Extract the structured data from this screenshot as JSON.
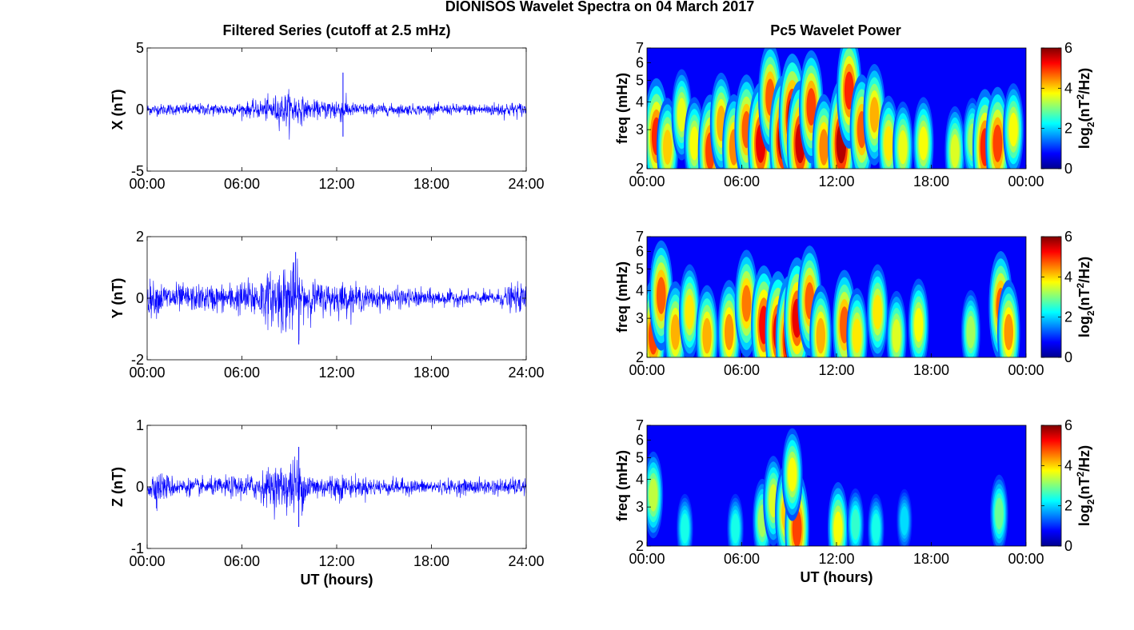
{
  "figure": {
    "suptitle": "DIONISOS Wavelet Spectra on 04 March 2017",
    "left_title": "Filtered Series (cutoff at 2.5 mHz)",
    "right_title": "Pc5 Wavelet Power"
  },
  "chart_data": [
    {
      "type": "line",
      "name": "X filtered series",
      "ylabel": "X (nT)",
      "xlabel": "",
      "xlim": [
        0,
        24
      ],
      "ylim": [
        -5,
        5
      ],
      "xticklabels": [
        "00:00",
        "06:00",
        "12:00",
        "18:00",
        "24:00"
      ],
      "yticklabels": [
        "-5",
        "0",
        "5"
      ],
      "series_color": "#0000ff",
      "envelope_hours": [
        0,
        2,
        4,
        6,
        7,
        8,
        9,
        9.5,
        10,
        11,
        12,
        12.5,
        13,
        15,
        18,
        21,
        22.5,
        24
      ],
      "envelope_amplitude_nT": [
        0.5,
        0.5,
        0.55,
        0.6,
        0.8,
        1.2,
        1.6,
        1.5,
        0.9,
        0.7,
        1.2,
        1.0,
        0.6,
        0.5,
        0.45,
        0.5,
        0.7,
        0.6
      ],
      "spikes": [
        {
          "hour": 12.4,
          "value": 3.0
        },
        {
          "hour": 12.4,
          "value": -2.2
        }
      ]
    },
    {
      "type": "line",
      "name": "Y filtered series",
      "ylabel": "Y (nT)",
      "xlabel": "",
      "xlim": [
        0,
        24
      ],
      "ylim": [
        -2,
        2
      ],
      "xticklabels": [
        "00:00",
        "06:00",
        "12:00",
        "18:00",
        "24:00"
      ],
      "yticklabels": [
        "-2",
        "0",
        "2"
      ],
      "series_color": "#0000ff",
      "envelope_hours": [
        0,
        1,
        3,
        5,
        6,
        7,
        8,
        8.5,
        9,
        9.5,
        10,
        11,
        12,
        14,
        16,
        18,
        20,
        22,
        23,
        24
      ],
      "envelope_amplitude_nT": [
        0.6,
        0.55,
        0.45,
        0.5,
        0.6,
        0.75,
        0.95,
        1.2,
        1.3,
        1.1,
        0.75,
        0.55,
        0.6,
        0.4,
        0.35,
        0.3,
        0.25,
        0.25,
        0.45,
        0.5
      ],
      "spikes": [
        {
          "hour": 9.4,
          "value": 1.5
        },
        {
          "hour": 9.6,
          "value": -1.5
        }
      ]
    },
    {
      "type": "line",
      "name": "Z filtered series",
      "ylabel": "Z (nT)",
      "xlabel": "UT (hours)",
      "xlim": [
        0,
        24
      ],
      "ylim": [
        -1,
        1
      ],
      "xticklabels": [
        "00:00",
        "06:00",
        "12:00",
        "18:00",
        "24:00"
      ],
      "yticklabels": [
        "-1",
        "0",
        "1"
      ],
      "series_color": "#0000ff",
      "envelope_hours": [
        0,
        0.5,
        2,
        4,
        6,
        7,
        8,
        9,
        9.5,
        10,
        11,
        12,
        13,
        15,
        18,
        21,
        24
      ],
      "envelope_amplitude_nT": [
        0.2,
        0.3,
        0.15,
        0.15,
        0.2,
        0.25,
        0.35,
        0.45,
        0.55,
        0.3,
        0.2,
        0.25,
        0.18,
        0.15,
        0.12,
        0.14,
        0.15
      ],
      "spikes": [
        {
          "hour": 9.6,
          "value": 0.65
        },
        {
          "hour": 9.6,
          "value": -0.65
        }
      ]
    },
    {
      "type": "heatmap",
      "name": "X wavelet power",
      "ylabel": "freq (mHz)",
      "xlabel": "",
      "xlim": [
        0,
        24
      ],
      "ylim": [
        2,
        7
      ],
      "yscale": "log",
      "xticklabels": [
        "00:00",
        "06:00",
        "12:00",
        "18:00",
        "00:00"
      ],
      "yticklabels": [
        "2",
        "3",
        "4",
        "5",
        "6",
        "7"
      ],
      "colorbar": {
        "label": "log2(nT2/Hz)",
        "range": [
          0,
          6
        ],
        "ticklabels": [
          "0",
          "2",
          "4",
          "6"
        ],
        "colormap": "jet"
      },
      "hotspots": [
        {
          "hour": 0.6,
          "freq": 2.8,
          "power": 5.2
        },
        {
          "hour": 1.3,
          "freq": 2.5,
          "power": 4.0
        },
        {
          "hour": 2.2,
          "freq": 3.5,
          "power": 3.5
        },
        {
          "hour": 3.0,
          "freq": 2.6,
          "power": 3.6
        },
        {
          "hour": 4.0,
          "freq": 2.4,
          "power": 5.0
        },
        {
          "hour": 4.7,
          "freq": 3.2,
          "power": 4.2
        },
        {
          "hour": 5.5,
          "freq": 2.5,
          "power": 4.5
        },
        {
          "hour": 6.3,
          "freq": 3.0,
          "power": 4.8
        },
        {
          "hour": 7.2,
          "freq": 2.6,
          "power": 5.6
        },
        {
          "hour": 7.8,
          "freq": 4.2,
          "power": 4.8
        },
        {
          "hour": 8.6,
          "freq": 2.7,
          "power": 6.0
        },
        {
          "hour": 9.2,
          "freq": 3.4,
          "power": 6.0
        },
        {
          "hour": 9.7,
          "freq": 2.6,
          "power": 5.8
        },
        {
          "hour": 10.4,
          "freq": 3.8,
          "power": 5.0
        },
        {
          "hour": 11.2,
          "freq": 2.5,
          "power": 4.5
        },
        {
          "hour": 12.3,
          "freq": 2.6,
          "power": 6.0
        },
        {
          "hour": 12.8,
          "freq": 4.5,
          "power": 5.2
        },
        {
          "hour": 13.6,
          "freq": 3.0,
          "power": 4.8
        },
        {
          "hour": 14.4,
          "freq": 3.5,
          "power": 4.2
        },
        {
          "hour": 15.3,
          "freq": 2.6,
          "power": 3.8
        },
        {
          "hour": 16.2,
          "freq": 2.5,
          "power": 3.5
        },
        {
          "hour": 17.5,
          "freq": 2.6,
          "power": 3.6
        },
        {
          "hour": 19.5,
          "freq": 2.4,
          "power": 3.4
        },
        {
          "hour": 20.6,
          "freq": 2.7,
          "power": 3.0
        },
        {
          "hour": 21.4,
          "freq": 2.5,
          "power": 5.2
        },
        {
          "hour": 22.2,
          "freq": 2.6,
          "power": 5.0
        },
        {
          "hour": 23.2,
          "freq": 3.0,
          "power": 3.6
        }
      ]
    },
    {
      "type": "heatmap",
      "name": "Y wavelet power",
      "ylabel": "freq (mHz)",
      "xlabel": "",
      "xlim": [
        0,
        24
      ],
      "ylim": [
        2,
        7
      ],
      "yscale": "log",
      "xticklabels": [
        "00:00",
        "06:00",
        "12:00",
        "18:00",
        "00:00"
      ],
      "yticklabels": [
        "2",
        "3",
        "4",
        "5",
        "6",
        "7"
      ],
      "colorbar": {
        "label": "log2(nT2/Hz)",
        "range": [
          0,
          6
        ],
        "ticklabels": [
          "0",
          "2",
          "4",
          "6"
        ],
        "colormap": "jet"
      },
      "hotspots": [
        {
          "hour": 0.4,
          "freq": 2.5,
          "power": 5.0
        },
        {
          "hour": 0.9,
          "freq": 3.8,
          "power": 4.8
        },
        {
          "hour": 1.8,
          "freq": 2.6,
          "power": 4.2
        },
        {
          "hour": 2.7,
          "freq": 3.2,
          "power": 3.8
        },
        {
          "hour": 3.8,
          "freq": 2.5,
          "power": 4.2
        },
        {
          "hour": 5.2,
          "freq": 2.6,
          "power": 4.4
        },
        {
          "hour": 6.3,
          "freq": 3.5,
          "power": 4.6
        },
        {
          "hour": 7.4,
          "freq": 2.8,
          "power": 5.4
        },
        {
          "hour": 8.3,
          "freq": 2.6,
          "power": 5.6
        },
        {
          "hour": 9.0,
          "freq": 2.4,
          "power": 6.0
        },
        {
          "hour": 9.5,
          "freq": 3.0,
          "power": 5.6
        },
        {
          "hour": 10.3,
          "freq": 3.6,
          "power": 4.8
        },
        {
          "hour": 11.0,
          "freq": 2.5,
          "power": 4.2
        },
        {
          "hour": 12.5,
          "freq": 2.8,
          "power": 4.8
        },
        {
          "hour": 13.3,
          "freq": 2.5,
          "power": 3.8
        },
        {
          "hour": 14.6,
          "freq": 3.2,
          "power": 3.8
        },
        {
          "hour": 15.8,
          "freq": 2.5,
          "power": 3.4
        },
        {
          "hour": 17.2,
          "freq": 2.8,
          "power": 3.6
        },
        {
          "hour": 20.5,
          "freq": 2.6,
          "power": 3.0
        },
        {
          "hour": 22.4,
          "freq": 3.4,
          "power": 4.8
        },
        {
          "hour": 22.9,
          "freq": 2.6,
          "power": 4.4
        }
      ]
    },
    {
      "type": "heatmap",
      "name": "Z wavelet power",
      "ylabel": "freq (mHz)",
      "xlabel": "UT (hours)",
      "xlim": [
        0,
        24
      ],
      "ylim": [
        2,
        7
      ],
      "yscale": "log",
      "xticklabels": [
        "00:00",
        "06:00",
        "12:00",
        "18:00",
        "00:00"
      ],
      "yticklabels": [
        "2",
        "3",
        "4",
        "5",
        "6",
        "7"
      ],
      "colorbar": {
        "label": "log2(nT2/Hz)",
        "range": [
          0,
          6
        ],
        "ticklabels": [
          "0",
          "2",
          "4",
          "6"
        ],
        "colormap": "jet"
      },
      "hotspots": [
        {
          "hour": 0.4,
          "freq": 3.4,
          "power": 3.2
        },
        {
          "hour": 2.4,
          "freq": 2.4,
          "power": 2.0
        },
        {
          "hour": 5.6,
          "freq": 2.4,
          "power": 2.0
        },
        {
          "hour": 7.3,
          "freq": 2.6,
          "power": 3.0
        },
        {
          "hour": 8.0,
          "freq": 3.2,
          "power": 3.4
        },
        {
          "hour": 8.8,
          "freq": 2.8,
          "power": 4.0
        },
        {
          "hour": 9.5,
          "freq": 2.4,
          "power": 5.0
        },
        {
          "hour": 9.2,
          "freq": 4.2,
          "power": 3.6
        },
        {
          "hour": 12.1,
          "freq": 2.4,
          "power": 3.6
        },
        {
          "hour": 13.2,
          "freq": 2.5,
          "power": 2.2
        },
        {
          "hour": 14.5,
          "freq": 2.4,
          "power": 2.0
        },
        {
          "hour": 16.3,
          "freq": 2.6,
          "power": 1.6
        },
        {
          "hour": 22.3,
          "freq": 2.8,
          "power": 2.6
        }
      ]
    }
  ]
}
